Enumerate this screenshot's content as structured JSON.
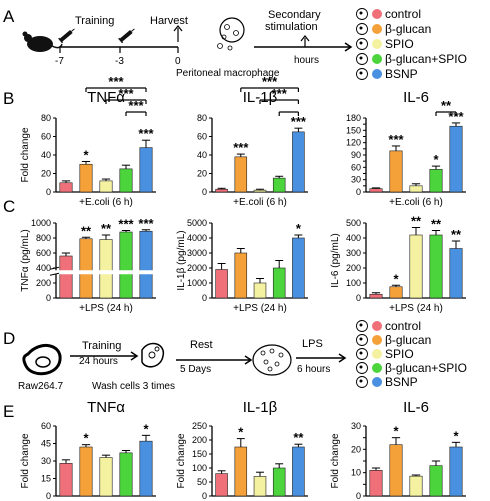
{
  "colors": {
    "control": "#f0707a",
    "beta_glucan": "#f5a13a",
    "spio": "#f4f2a0",
    "beta_glucan_spio": "#4cd43c",
    "bsnp": "#4a90e0"
  },
  "legend": [
    "control",
    "β-glucan",
    "SPIO",
    "β-glucan+SPIO",
    "BSNP"
  ],
  "panelA": {
    "label": "A",
    "training": "Training",
    "harvest": "Harvest",
    "secondary": "Secondary",
    "stimulation": "stimulation",
    "macrophage": "Peritoneal macrophage",
    "hours": "hours",
    "ticks": [
      "-7",
      "-3",
      "0"
    ]
  },
  "panelD": {
    "label": "D",
    "training": "Training",
    "hours24": "24 hours",
    "raw": "Raw264.7",
    "wash": "Wash cells 3 times",
    "rest": "Rest",
    "days": "5 Days",
    "lps": "LPS",
    "hours6": "6 hours"
  },
  "chart_data": [
    {
      "panel": "B",
      "type": "bar",
      "title": "TNFα",
      "ylabel": "Fold change",
      "xlabel": "+E.coli (6 h)",
      "categories": [
        "control",
        "β-glucan",
        "SPIO",
        "β-glucan+SPIO",
        "BSNP"
      ],
      "values": [
        10,
        30,
        12,
        25,
        48
      ],
      "errors": [
        2,
        3,
        2,
        4,
        8
      ],
      "ylim": [
        0,
        80
      ],
      "yticks": [
        "0",
        "20",
        "40",
        "60",
        "80"
      ],
      "stars": [
        "",
        "*",
        "",
        "",
        "***"
      ],
      "brackets": [
        {
          "from": 1,
          "to": 4,
          "label": "***"
        },
        {
          "from": 2,
          "to": 4,
          "label": "***"
        },
        {
          "from": 3,
          "to": 4,
          "label": "***"
        }
      ]
    },
    {
      "panel": "B",
      "type": "bar",
      "title": "IL-1β",
      "ylabel": "",
      "xlabel": "+E.coli (6 h)",
      "categories": [
        "control",
        "β-glucan",
        "SPIO",
        "β-glucan+SPIO",
        "BSNP"
      ],
      "values": [
        3,
        38,
        2,
        15,
        65
      ],
      "errors": [
        1,
        3,
        1,
        2,
        4
      ],
      "ylim": [
        0,
        80
      ],
      "yticks": [
        "0",
        "20",
        "40",
        "60",
        "80"
      ],
      "stars": [
        "",
        "***",
        "",
        "",
        "***"
      ],
      "brackets": [
        {
          "from": 1,
          "to": 4,
          "label": "***"
        },
        {
          "from": 2,
          "to": 4,
          "label": "***"
        },
        {
          "from": 3,
          "to": 4,
          "label": ""
        }
      ]
    },
    {
      "panel": "B",
      "type": "bar",
      "title": "IL-6",
      "ylabel": "",
      "xlabel": "+E.coli (6 h)",
      "categories": [
        "control",
        "β-glucan",
        "SPIO",
        "β-glucan+SPIO",
        "BSNP"
      ],
      "values": [
        8,
        100,
        15,
        55,
        160
      ],
      "errors": [
        2,
        12,
        5,
        8,
        8
      ],
      "ylim": [
        0,
        180
      ],
      "yticks": [
        "0",
        "15",
        "30",
        "45",
        "60",
        "75",
        "90",
        "105",
        "120",
        "135",
        "150",
        "165",
        "180"
      ],
      "ytick_labels": [
        "0",
        "",
        "30",
        "",
        "60",
        "",
        "90",
        "",
        "120",
        "",
        "150",
        "",
        "180"
      ],
      "stars": [
        "",
        "***",
        "",
        "*",
        "***"
      ],
      "brackets": [
        {
          "from": 3,
          "to": 4,
          "label": "**"
        }
      ]
    },
    {
      "panel": "C",
      "type": "bar",
      "title": "",
      "ylabel": "TNFα (pg/mL)",
      "xlabel": "+LPS (24 h)",
      "categories": [
        "control",
        "β-glucan",
        "SPIO",
        "β-glucan+SPIO",
        "BSNP"
      ],
      "values": [
        560,
        790,
        780,
        880,
        890
      ],
      "errors": [
        40,
        20,
        60,
        20,
        20
      ],
      "ylim": [
        0,
        1000
      ],
      "yticks": [
        "0",
        "200",
        "400",
        "600",
        "800",
        "1000"
      ],
      "broken_axis": true,
      "stars": [
        "",
        "**",
        "**",
        "***",
        "***"
      ],
      "brackets": []
    },
    {
      "panel": "C",
      "type": "bar",
      "title": "",
      "ylabel": "IL-1β (pg/mL)",
      "xlabel": "+LPS (24 h)",
      "categories": [
        "control",
        "β-glucan",
        "SPIO",
        "β-glucan+SPIO",
        "BSNP"
      ],
      "values": [
        1900,
        3000,
        1000,
        2000,
        4000
      ],
      "errors": [
        400,
        300,
        300,
        500,
        200
      ],
      "ylim": [
        0,
        5000
      ],
      "yticks": [
        "0",
        "1000",
        "2000",
        "3000",
        "4000",
        "5000"
      ],
      "stars": [
        "",
        "",
        "",
        "",
        "*"
      ],
      "brackets": []
    },
    {
      "panel": "C",
      "type": "bar",
      "title": "",
      "ylabel": "IL-6 (pg/mL)",
      "xlabel": "+LPS (24 h)",
      "categories": [
        "control",
        "β-glucan",
        "SPIO",
        "β-glucan+SPIO",
        "BSNP"
      ],
      "values": [
        25,
        75,
        420,
        420,
        330
      ],
      "errors": [
        10,
        10,
        50,
        30,
        50
      ],
      "ylim": [
        0,
        500
      ],
      "yticks": [
        "0",
        "100",
        "200",
        "300",
        "400",
        "500"
      ],
      "stars": [
        "",
        "*",
        "**",
        "**",
        "**"
      ],
      "brackets": []
    },
    {
      "panel": "E",
      "type": "bar",
      "title": "TNFα",
      "ylabel": "Fold change",
      "xlabel": "",
      "categories": [
        "control",
        "β-glucan",
        "SPIO",
        "β-glucan+SPIO",
        "BSNP"
      ],
      "values": [
        28,
        42,
        33,
        37,
        47
      ],
      "errors": [
        3,
        2,
        2,
        2,
        5
      ],
      "ylim": [
        0,
        60
      ],
      "yticks": [
        "0",
        "15",
        "30",
        "45",
        "60"
      ],
      "stars": [
        "",
        "*",
        "",
        "",
        "*"
      ],
      "brackets": []
    },
    {
      "panel": "E",
      "type": "bar",
      "title": "IL-1β",
      "ylabel": "Fold change",
      "xlabel": "",
      "categories": [
        "control",
        "β-glucan",
        "SPIO",
        "β-glucan+SPIO",
        "BSNP"
      ],
      "values": [
        80,
        175,
        70,
        100,
        175
      ],
      "errors": [
        10,
        30,
        15,
        15,
        10
      ],
      "ylim": [
        0,
        250
      ],
      "yticks": [
        "0",
        "50",
        "100",
        "150",
        "200",
        "250"
      ],
      "stars": [
        "",
        "*",
        "",
        "",
        "**"
      ],
      "brackets": []
    },
    {
      "panel": "E",
      "type": "bar",
      "title": "IL-6",
      "ylabel": "Fold change",
      "xlabel": "",
      "categories": [
        "control",
        "β-glucan",
        "SPIO",
        "β-glucan+SPIO",
        "BSNP"
      ],
      "values": [
        11,
        22,
        8.5,
        13,
        21
      ],
      "errors": [
        1,
        3,
        0.5,
        2,
        2
      ],
      "ylim": [
        0,
        30
      ],
      "yticks": [
        "0",
        "5",
        "10",
        "15",
        "20",
        "25",
        "30"
      ],
      "ytick_labels": [
        "0",
        "",
        "10",
        "",
        "20",
        "",
        "30"
      ],
      "stars": [
        "",
        "*",
        "",
        "",
        "*"
      ],
      "brackets": []
    }
  ]
}
